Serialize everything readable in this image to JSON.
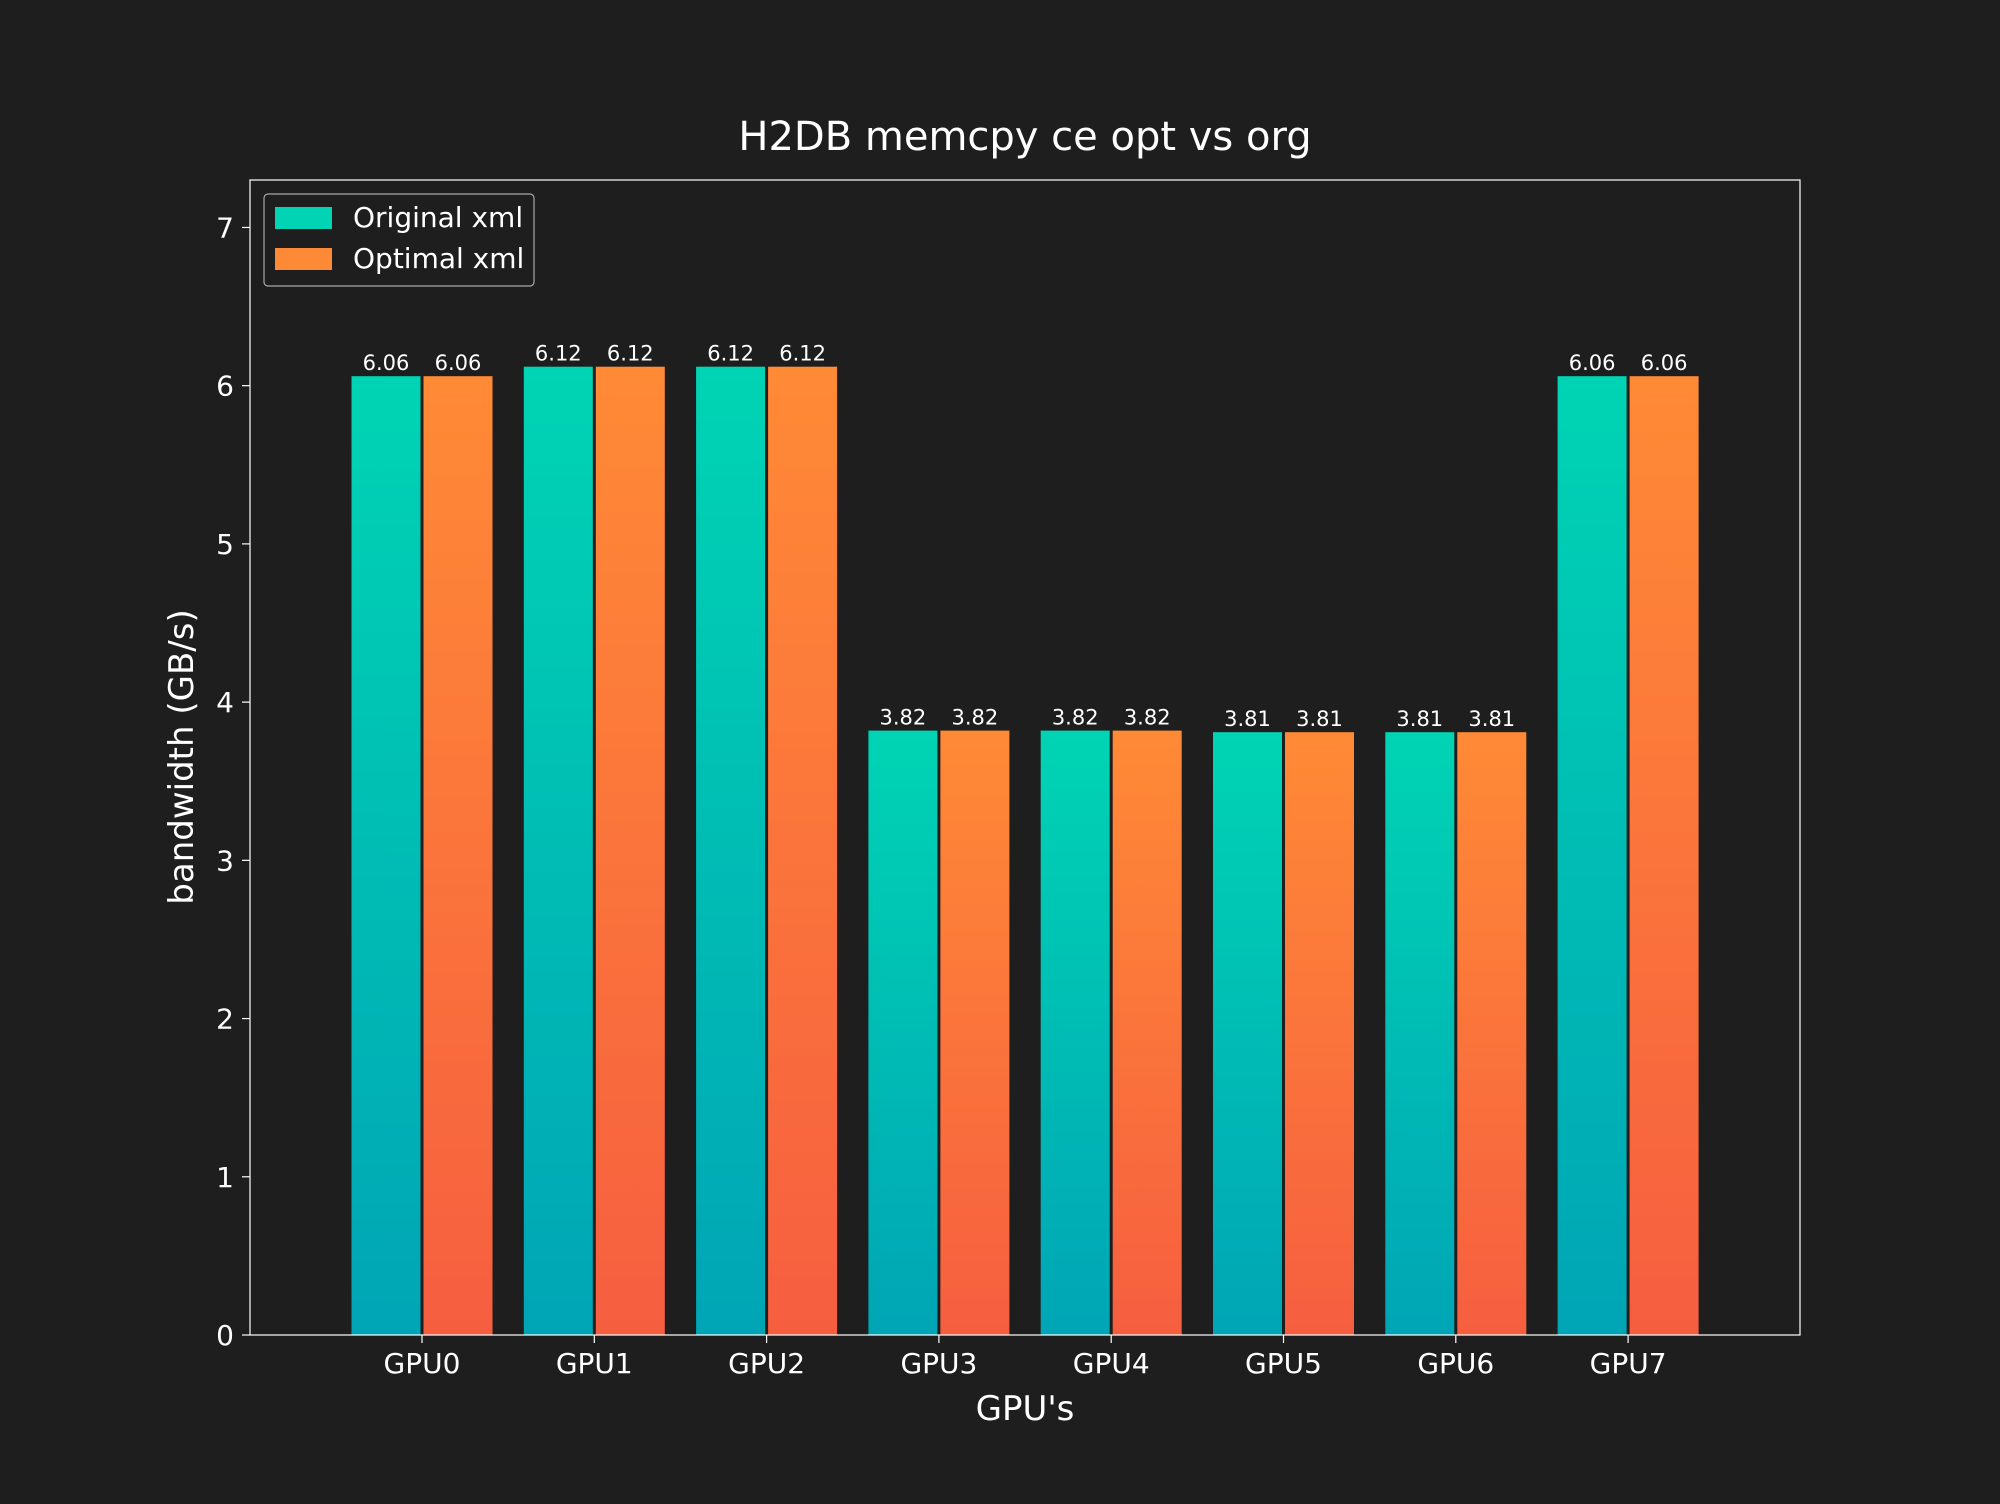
{
  "chart_data": {
    "type": "bar",
    "title": "H2DB memcpy ce opt vs org",
    "xlabel": "GPU's",
    "ylabel": "bandwidth (GB/s)",
    "categories": [
      "GPU0",
      "GPU1",
      "GPU2",
      "GPU3",
      "GPU4",
      "GPU5",
      "GPU6",
      "GPU7"
    ],
    "series": [
      {
        "name": "Original xml",
        "values": [
          6.06,
          6.12,
          6.12,
          3.82,
          3.82,
          3.81,
          3.81,
          6.06
        ],
        "labels": [
          "6.06",
          "6.12",
          "6.12",
          "3.82",
          "3.82",
          "3.81",
          "3.81",
          "6.06"
        ],
        "color_top": "#00d4b4",
        "color_bottom": "#00a5b5"
      },
      {
        "name": "Optimal xml",
        "values": [
          6.06,
          6.12,
          6.12,
          3.82,
          3.82,
          3.81,
          3.81,
          6.06
        ],
        "labels": [
          "6.06",
          "6.12",
          "6.12",
          "3.82",
          "3.82",
          "3.81",
          "3.81",
          "6.06"
        ],
        "color_top": "#ff8a36",
        "color_bottom": "#f65e40"
      }
    ],
    "ylim": [
      0,
      7.3
    ],
    "yticks": [
      0,
      1,
      2,
      3,
      4,
      5,
      6,
      7
    ],
    "ytick_labels": [
      "0",
      "1",
      "2",
      "3",
      "4",
      "5",
      "6",
      "7"
    ],
    "grid": false,
    "legend_position": "top-left",
    "background_color": "#1e1e1e",
    "text_color": "#ffffff",
    "axis_color": "#ffffff"
  }
}
